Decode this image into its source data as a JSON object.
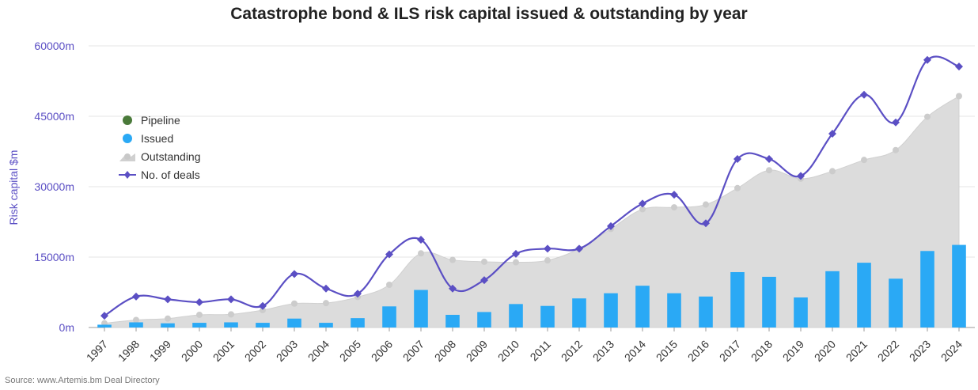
{
  "chart_data": {
    "type": "bar",
    "title": "Catastrophe bond & ILS risk capital issued & outstanding by year",
    "ylabel": "Risk capital $m",
    "xlabel": "",
    "ylim": [
      0,
      60000
    ],
    "yticks": [
      "0m",
      "15000m",
      "30000m",
      "45000m",
      "60000m"
    ],
    "ytick_values": [
      0,
      15000,
      30000,
      45000,
      60000
    ],
    "categories": [
      "1997",
      "1998",
      "1999",
      "2000",
      "2001",
      "2002",
      "2003",
      "2004",
      "2005",
      "2006",
      "2007",
      "2008",
      "2009",
      "2010",
      "2011",
      "2012",
      "2013",
      "2014",
      "2015",
      "2016",
      "2017",
      "2018",
      "2019",
      "2020",
      "2021",
      "2022",
      "2023",
      "2024"
    ],
    "series": [
      {
        "name": "Pipeline",
        "kind": "bar",
        "color": "#4a7a3a",
        "values": [
          0,
          0,
          0,
          0,
          0,
          0,
          0,
          0,
          0,
          0,
          0,
          0,
          0,
          0,
          0,
          0,
          0,
          0,
          0,
          0,
          0,
          0,
          0,
          0,
          0,
          0,
          0,
          0
        ]
      },
      {
        "name": "Issued",
        "kind": "bar",
        "color": "#2aa9f5",
        "values": [
          600,
          1100,
          900,
          1000,
          1100,
          1000,
          1900,
          1000,
          2000,
          4500,
          8000,
          2700,
          3300,
          5000,
          4600,
          6200,
          7300,
          8900,
          7300,
          6600,
          11800,
          10800,
          6400,
          12000,
          13800,
          10400,
          16300,
          17600
        ]
      },
      {
        "name": "Outstanding",
        "kind": "area",
        "color": "#d6d6d6",
        "values": [
          900,
          1600,
          1900,
          2700,
          2800,
          3700,
          5100,
          5200,
          6500,
          9100,
          15800,
          14400,
          14000,
          13900,
          14300,
          16800,
          21000,
          25200,
          25600,
          26200,
          29700,
          33500,
          31700,
          33300,
          35700,
          37800,
          44900,
          49300
        ]
      },
      {
        "name": "No. of deals",
        "kind": "line",
        "color": "#5b4fc4",
        "values": [
          2500,
          6600,
          6000,
          5400,
          6000,
          4600,
          11400,
          8300,
          7200,
          15600,
          18700,
          8300,
          10100,
          15700,
          16800,
          16800,
          21600,
          26400,
          28300,
          22200,
          35900,
          35900,
          32300,
          41300,
          49600,
          43700,
          57000,
          55600
        ]
      }
    ],
    "legend": {
      "position": "left",
      "items": [
        "Pipeline",
        "Issued",
        "Outstanding",
        "No. of deals"
      ]
    },
    "grid": true
  },
  "source_note": "Source: www.Artemis.bm Deal Directory"
}
